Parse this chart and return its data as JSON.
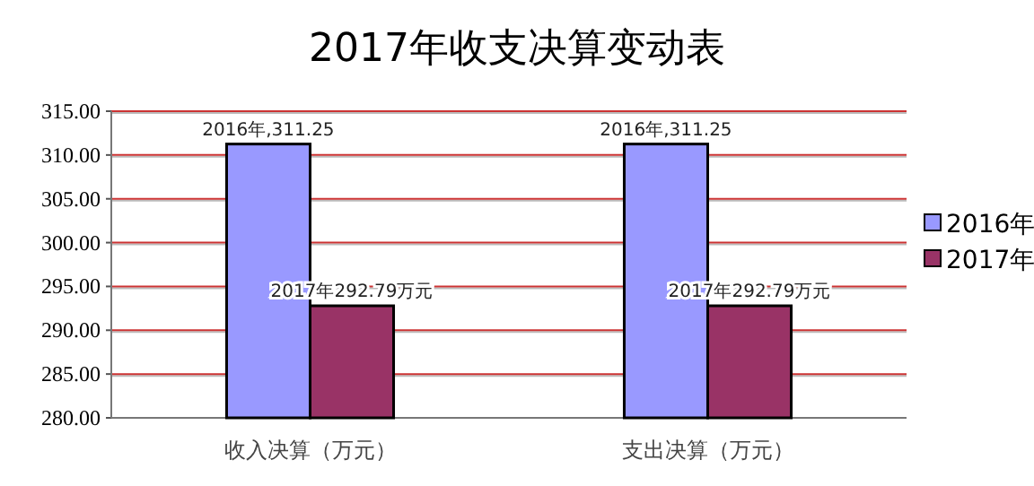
{
  "chart_data": {
    "type": "bar",
    "title": "2017年收支决算变动表",
    "categories": [
      "收入决算（万元）",
      "支出决算（万元）"
    ],
    "series": [
      {
        "name": "2016年",
        "color": "#9999ff",
        "values": [
          311.25,
          311.25
        ],
        "value_labels": [
          "2016年,311.25",
          "2016年,311.25"
        ]
      },
      {
        "name": "2017年",
        "color": "#993366",
        "values": [
          292.79,
          292.79
        ],
        "value_labels": [
          "2017年292.79万元",
          "2017年292.79万元"
        ]
      }
    ],
    "ylim": [
      280,
      315
    ],
    "yticks": [
      {
        "value": 280,
        "label": "280.00"
      },
      {
        "value": 285,
        "label": "285.00"
      },
      {
        "value": 290,
        "label": "290.00"
      },
      {
        "value": 295,
        "label": "295.00"
      },
      {
        "value": 300,
        "label": "300.00"
      },
      {
        "value": 305,
        "label": "305.00"
      },
      {
        "value": 310,
        "label": "310.00"
      },
      {
        "value": 315,
        "label": "315.00"
      }
    ],
    "grid": "y",
    "legend": "right"
  }
}
